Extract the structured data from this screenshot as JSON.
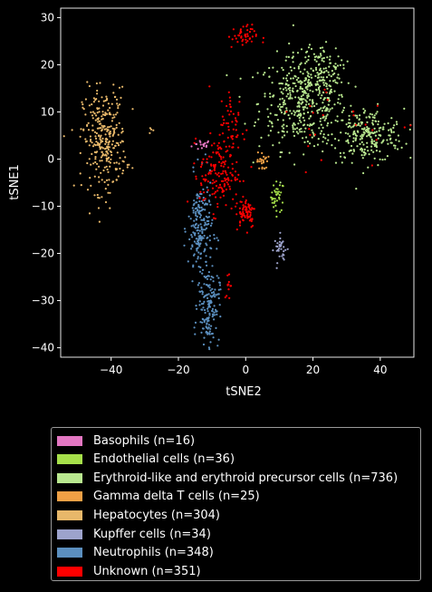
{
  "chart_data": {
    "type": "scatter",
    "xlabel": "tSNE2",
    "ylabel": "tSNE1",
    "xlim": [
      -55,
      50
    ],
    "ylim": [
      -42,
      32
    ],
    "xticks": [
      -40,
      -20,
      0,
      20,
      40
    ],
    "yticks": [
      -40,
      -30,
      -20,
      -10,
      0,
      10,
      20,
      30
    ],
    "xtick_labels": [
      "−40",
      "−20",
      "0",
      "20",
      "40"
    ],
    "ytick_labels": [
      "−40",
      "−30",
      "−20",
      "−10",
      "0",
      "10",
      "20",
      "30"
    ],
    "grid": false,
    "legend_position": "below",
    "series": [
      {
        "name": "Basophils (n=16)",
        "color": "#e377c2",
        "n": 16,
        "clusters": [
          {
            "cx": -13,
            "cy": 3,
            "sx": 1.5,
            "sy": 0.6,
            "n": 16
          }
        ]
      },
      {
        "name": "Endothelial cells (n=36)",
        "color": "#a6e04a",
        "n": 36,
        "clusters": [
          {
            "cx": 9.5,
            "cy": -8,
            "sx": 1.0,
            "sy": 1.6,
            "n": 36
          }
        ]
      },
      {
        "name": "Erythroid-like and erythroid precursor cells (n=736)",
        "color": "#b9e88f",
        "n": 736,
        "clusters": [
          {
            "cx": 17,
            "cy": 12,
            "sx": 6.5,
            "sy": 5,
            "n": 420
          },
          {
            "cx": 36,
            "cy": 5,
            "sx": 5.5,
            "sy": 2.8,
            "n": 230
          },
          {
            "cx": 22,
            "cy": 19,
            "sx": 3,
            "sy": 2.5,
            "n": 86
          }
        ]
      },
      {
        "name": "Gamma delta T cells (n=25)",
        "color": "#f0a045",
        "n": 25,
        "clusters": [
          {
            "cx": 5,
            "cy": -0.5,
            "sx": 0.8,
            "sy": 1.0,
            "n": 25
          }
        ]
      },
      {
        "name": "Hepatocytes (n=304)",
        "color": "#e8b86a",
        "n": 304,
        "clusters": [
          {
            "cx": -42,
            "cy": 4,
            "sx": 3.2,
            "sy": 5.5,
            "n": 300
          },
          {
            "cx": -28,
            "cy": 6,
            "sx": 0.6,
            "sy": 0.3,
            "n": 4
          }
        ]
      },
      {
        "name": "Kupffer cells (n=34)",
        "color": "#9da3cc",
        "n": 34,
        "clusters": [
          {
            "cx": 10.5,
            "cy": -19,
            "sx": 1.0,
            "sy": 1.4,
            "n": 34
          }
        ]
      },
      {
        "name": "Neutrophils (n=348)",
        "color": "#5b8fbf",
        "n": 348,
        "clusters": [
          {
            "cx": -13.5,
            "cy": -15,
            "sx": 1.8,
            "sy": 5.5,
            "n": 200
          },
          {
            "cx": -11,
            "cy": -31,
            "sx": 1.6,
            "sy": 4,
            "n": 148
          }
        ]
      },
      {
        "name": "Unknown (n=351)",
        "color": "#ff0000",
        "n": 351,
        "clusters": [
          {
            "cx": -1,
            "cy": 26,
            "sx": 2.2,
            "sy": 1.2,
            "n": 45
          },
          {
            "cx": -8,
            "cy": -3,
            "sx": 2.8,
            "sy": 4,
            "n": 150
          },
          {
            "cx": 0,
            "cy": -11,
            "sx": 1.5,
            "sy": 1.8,
            "n": 70
          },
          {
            "cx": -4,
            "cy": 7,
            "sx": 2,
            "sy": 4,
            "n": 50
          },
          {
            "cx": -5,
            "cy": -27,
            "sx": 0.6,
            "sy": 1.5,
            "n": 12
          },
          {
            "cx": 30,
            "cy": 8,
            "sx": 12,
            "sy": 5,
            "n": 24
          }
        ]
      }
    ]
  }
}
